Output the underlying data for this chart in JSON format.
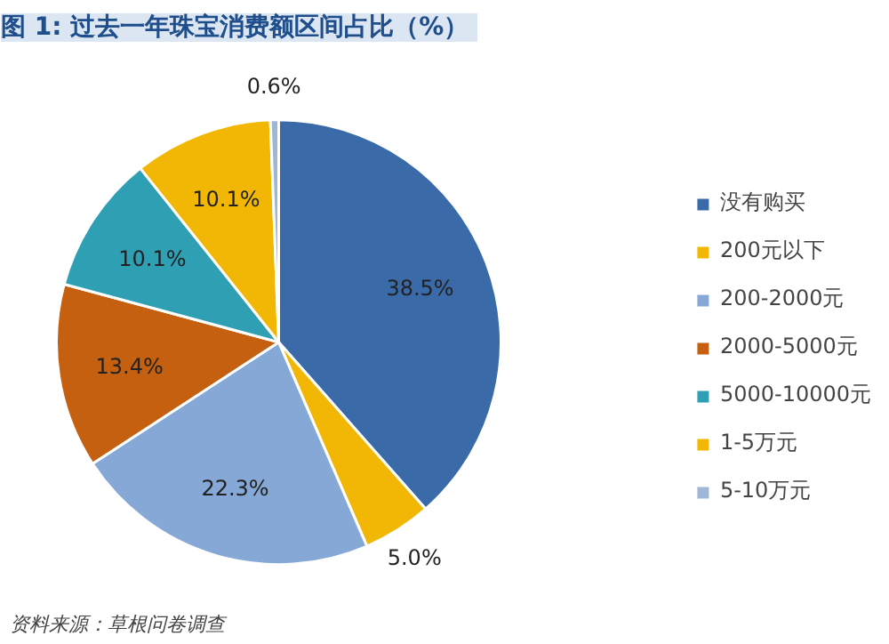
{
  "chart_data": {
    "type": "pie",
    "title": "图 1:  过去一年珠宝消费额区间占比（%）",
    "categories": [
      "没有购买",
      "200元以下",
      "200-2000元",
      "2000-5000元",
      "5000-10000元",
      "1-5万元",
      "5-10万元"
    ],
    "values": [
      38.5,
      5.0,
      22.3,
      13.4,
      10.1,
      10.1,
      0.6
    ],
    "colors": [
      "#3a6aa8",
      "#f2b705",
      "#86a8d6",
      "#c4600f",
      "#2f9fb3",
      "#f2b705",
      "#9fb6d6"
    ],
    "value_labels": [
      "38.5%",
      "5.0%",
      "22.3%",
      "13.4%",
      "10.1%",
      "10.1%",
      "0.6%"
    ],
    "legend": "right",
    "annotations": [
      "资料来源：草根问卷调查"
    ]
  }
}
